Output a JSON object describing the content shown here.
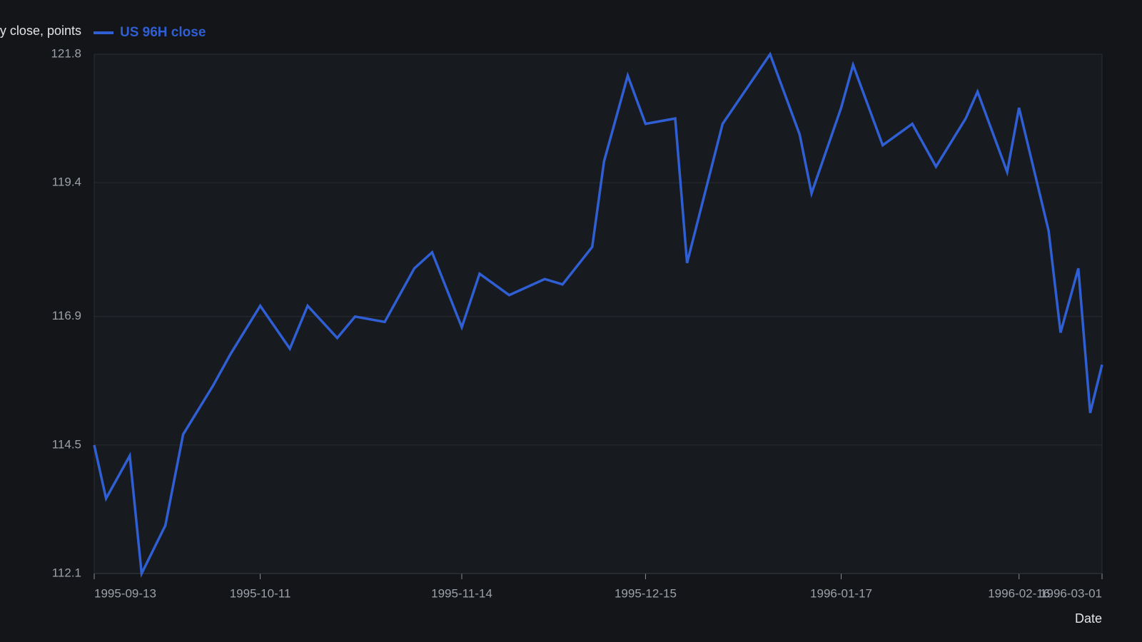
{
  "chart_data": {
    "type": "line",
    "y_label": "Daily close, points",
    "x_label": "Date",
    "x": [
      "1995-09-13",
      "1995-09-15",
      "1995-09-19",
      "1995-09-21",
      "1995-09-25",
      "1995-09-28",
      "1995-10-03",
      "1995-10-06",
      "1995-10-11",
      "1995-10-16",
      "1995-10-19",
      "1995-10-24",
      "1995-10-27",
      "1995-11-01",
      "1995-11-06",
      "1995-11-09",
      "1995-11-14",
      "1995-11-17",
      "1995-11-22",
      "1995-11-28",
      "1995-12-01",
      "1995-12-06",
      "1995-12-08",
      "1995-12-12",
      "1995-12-15",
      "1995-12-20",
      "1995-12-22",
      "1995-12-28",
      "1996-01-05",
      "1996-01-10",
      "1996-01-12",
      "1996-01-17",
      "1996-01-19",
      "1996-01-24",
      "1996-01-29",
      "1996-02-02",
      "1996-02-07",
      "1996-02-09",
      "1996-02-14",
      "1996-02-16",
      "1996-02-21",
      "1996-02-23",
      "1996-02-26",
      "1996-02-28",
      "1996-03-01"
    ],
    "series": [
      {
        "name": "US 96H close",
        "color": "#2f5fd3",
        "values": [
          114.5,
          113.5,
          114.3,
          112.1,
          113.0,
          114.7,
          115.6,
          116.2,
          117.1,
          116.3,
          117.1,
          116.5,
          116.9,
          116.8,
          117.8,
          118.1,
          116.7,
          117.7,
          117.3,
          117.6,
          117.5,
          118.2,
          119.8,
          121.4,
          120.5,
          120.6,
          117.9,
          120.5,
          121.8,
          120.3,
          119.2,
          120.8,
          121.6,
          120.1,
          120.5,
          119.7,
          120.6,
          121.1,
          119.6,
          120.8,
          118.5,
          116.6,
          117.8,
          115.1,
          116.0
        ]
      }
    ],
    "xlim": [
      "1995-09-13",
      "1996-03-01"
    ],
    "xticks": [
      "1995-09-13",
      "1995-10-11",
      "1995-11-14",
      "1995-12-15",
      "1996-01-17",
      "1996-02-16",
      "1996-03-01"
    ],
    "ylim": [
      112.1,
      121.8
    ],
    "yticks": [
      112.1,
      114.5,
      116.9,
      119.4,
      121.8
    ],
    "grid": true
  }
}
